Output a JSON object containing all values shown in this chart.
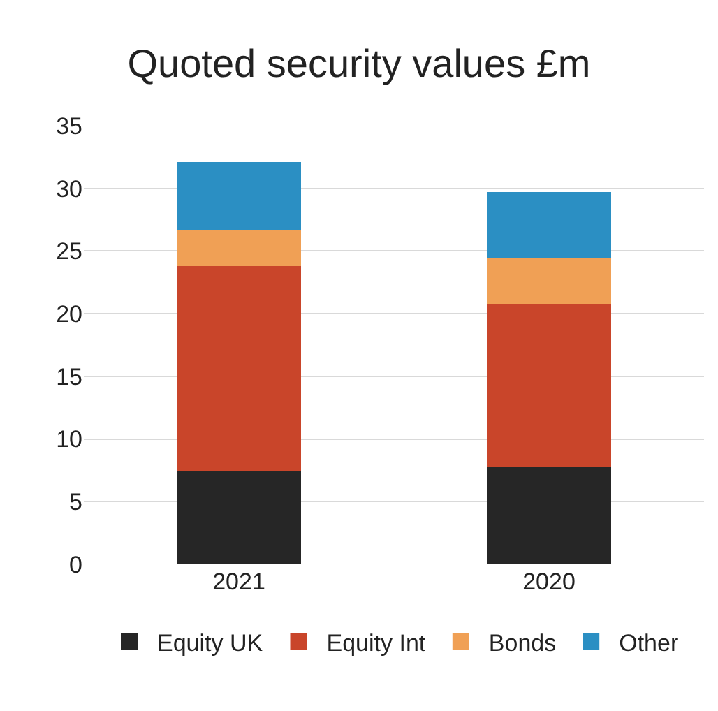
{
  "chart_data": {
    "type": "bar",
    "title": "Quoted security values £m",
    "stacked": true,
    "categories": [
      "2021",
      "2020"
    ],
    "series": [
      {
        "name": "Equity UK",
        "color": "#262626",
        "values": [
          7.4,
          7.8
        ]
      },
      {
        "name": "Equity Int",
        "color": "#c9452a",
        "values": [
          16.4,
          13.0
        ]
      },
      {
        "name": "Bonds",
        "color": "#f0a055",
        "values": [
          2.9,
          3.6
        ]
      },
      {
        "name": "Other",
        "color": "#2b8fc3",
        "values": [
          5.4,
          5.3
        ]
      }
    ],
    "ylim": [
      0,
      35
    ],
    "yticks": [
      0,
      5,
      10,
      15,
      20,
      25,
      30,
      35
    ],
    "grid": "y",
    "legend": "bottom"
  }
}
